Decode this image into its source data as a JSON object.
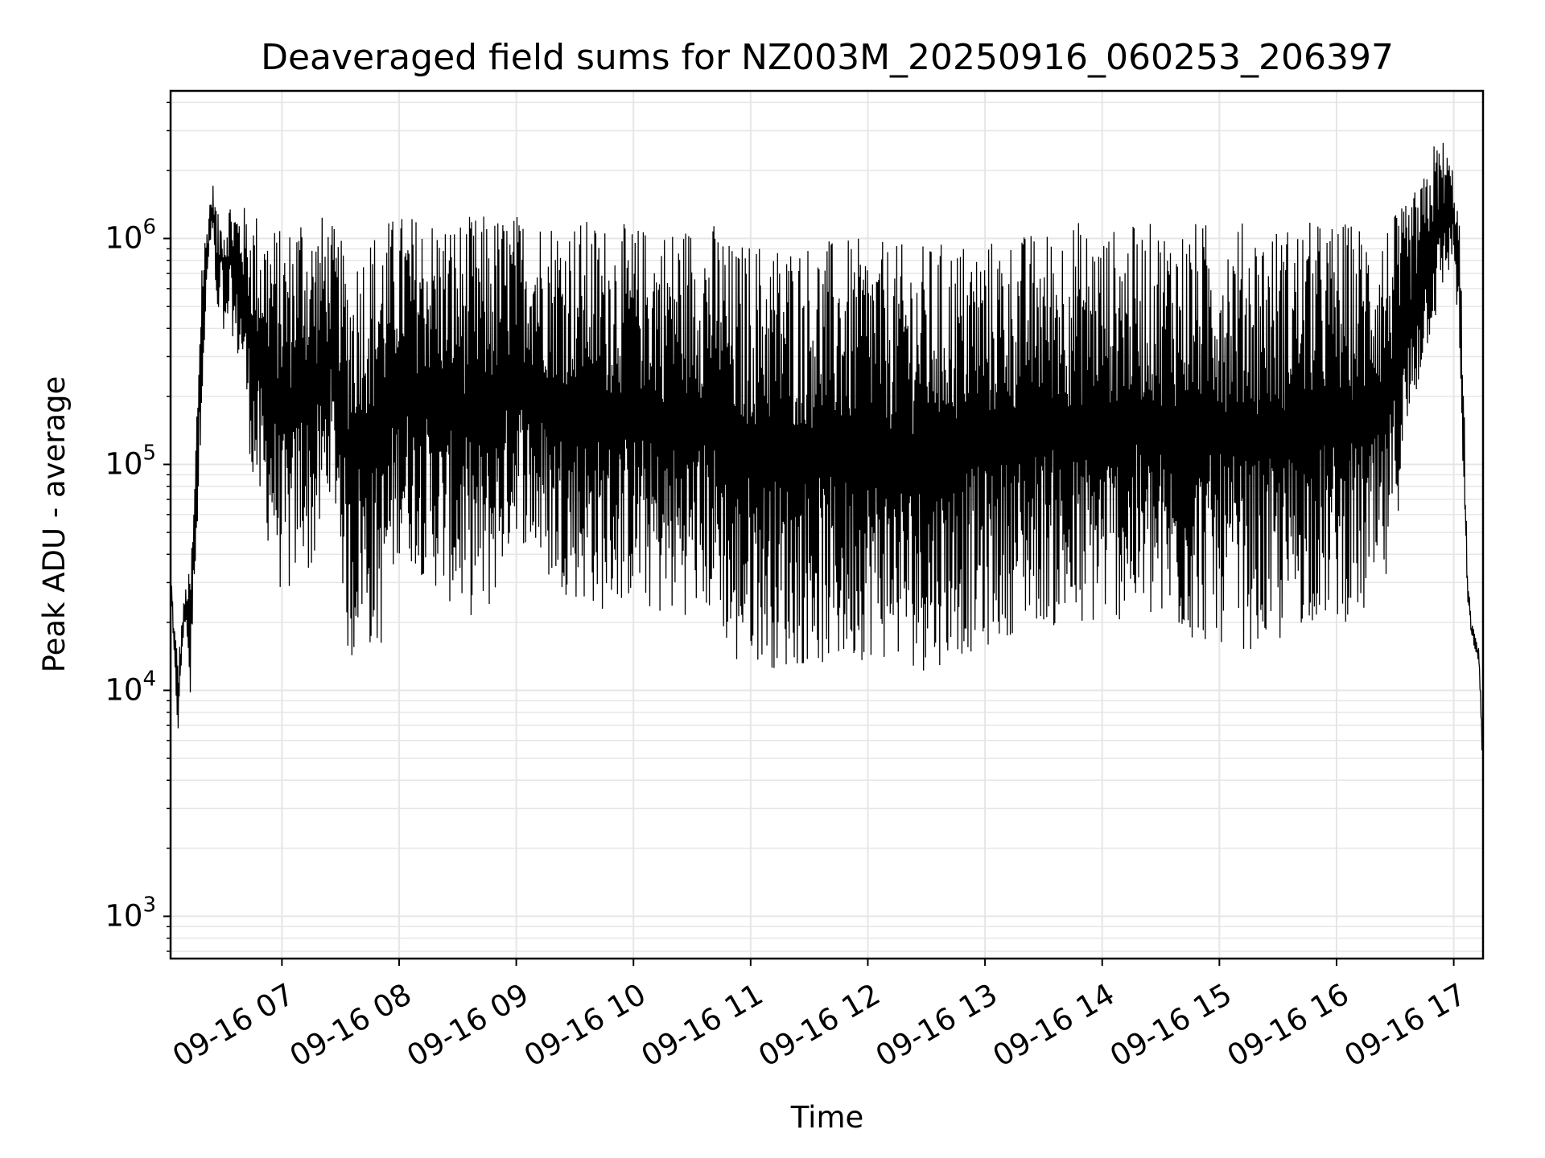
{
  "chart_data": {
    "type": "line",
    "title": "Deaveraged field sums for NZ003M_20250916_060253_206397",
    "xlabel": "Time",
    "ylabel": "Peak ADU - average",
    "x_range": [
      "2025-09-16T06:03",
      "2025-09-16T17:15"
    ],
    "y_scale": "log",
    "ylim": [
      650,
      4500000
    ],
    "grid": true,
    "line_color": "#000000",
    "grid_color": "#e6e6e6",
    "x_ticks": [
      {
        "value": "2025-09-16T07:00",
        "label": "09-16 07"
      },
      {
        "value": "2025-09-16T08:00",
        "label": "09-16 08"
      },
      {
        "value": "2025-09-16T09:00",
        "label": "09-16 09"
      },
      {
        "value": "2025-09-16T10:00",
        "label": "09-16 10"
      },
      {
        "value": "2025-09-16T11:00",
        "label": "09-16 11"
      },
      {
        "value": "2025-09-16T12:00",
        "label": "09-16 12"
      },
      {
        "value": "2025-09-16T13:00",
        "label": "09-16 13"
      },
      {
        "value": "2025-09-16T14:00",
        "label": "09-16 14"
      },
      {
        "value": "2025-09-16T15:00",
        "label": "09-16 15"
      },
      {
        "value": "2025-09-16T16:00",
        "label": "09-16 16"
      },
      {
        "value": "2025-09-16T17:00",
        "label": "09-16 17"
      }
    ],
    "y_ticks": [
      {
        "value": 1000,
        "base": "10",
        "exp": "3"
      },
      {
        "value": 10000,
        "base": "10",
        "exp": "4"
      },
      {
        "value": 100000,
        "base": "10",
        "exp": "5"
      },
      {
        "value": 1000000,
        "base": "10",
        "exp": "6"
      }
    ],
    "series": [
      {
        "x": [
          "2025-09-16T06:03",
          "2025-09-16T06:05",
          "2025-09-16T06:07",
          "2025-09-16T06:09",
          "2025-09-16T06:11",
          "2025-09-16T06:13",
          "2025-09-16T06:15",
          "2025-09-16T06:17",
          "2025-09-16T06:19",
          "2025-09-16T06:21",
          "2025-09-16T06:23",
          "2025-09-16T06:25",
          "2025-09-16T06:27",
          "2025-09-16T06:29",
          "2025-09-16T06:31",
          "2025-09-16T06:33",
          "2025-09-16T06:36",
          "2025-09-16T06:40",
          "2025-09-16T06:45",
          "2025-09-16T06:50",
          "2025-09-16T06:55",
          "2025-09-16T07:00",
          "2025-09-16T07:05",
          "2025-09-16T07:10",
          "2025-09-16T07:15",
          "2025-09-16T07:20",
          "2025-09-16T07:25",
          "2025-09-16T07:30",
          "2025-09-16T07:33",
          "2025-09-16T07:36",
          "2025-09-16T07:40",
          "2025-09-16T07:45",
          "2025-09-16T07:50",
          "2025-09-16T08:00",
          "2025-09-16T08:15",
          "2025-09-16T08:30",
          "2025-09-16T08:45",
          "2025-09-16T09:00",
          "2025-09-16T09:15",
          "2025-09-16T09:30",
          "2025-09-16T09:45",
          "2025-09-16T10:00",
          "2025-09-16T10:15",
          "2025-09-16T10:30",
          "2025-09-16T10:45",
          "2025-09-16T10:50",
          "2025-09-16T11:00",
          "2025-09-16T11:15",
          "2025-09-16T11:30",
          "2025-09-16T11:45",
          "2025-09-16T12:00",
          "2025-09-16T12:15",
          "2025-09-16T12:30",
          "2025-09-16T12:45",
          "2025-09-16T13:00",
          "2025-09-16T13:15",
          "2025-09-16T13:30",
          "2025-09-16T13:45",
          "2025-09-16T14:00",
          "2025-09-16T14:15",
          "2025-09-16T14:30",
          "2025-09-16T14:45",
          "2025-09-16T15:00",
          "2025-09-16T15:15",
          "2025-09-16T15:30",
          "2025-09-16T15:45",
          "2025-09-16T16:00",
          "2025-09-16T16:15",
          "2025-09-16T16:25",
          "2025-09-16T16:35",
          "2025-09-16T16:45",
          "2025-09-16T16:50",
          "2025-09-16T16:55",
          "2025-09-16T17:00",
          "2025-09-16T17:03",
          "2025-09-16T17:05",
          "2025-09-16T17:07",
          "2025-09-16T17:09",
          "2025-09-16T17:11",
          "2025-09-16T17:13",
          "2025-09-16T17:15"
        ],
        "low": [
          30000,
          11000,
          6000,
          15000,
          20000,
          8000,
          30000,
          50000,
          200000,
          400000,
          900000,
          1000000,
          300000,
          700000,
          200000,
          500000,
          300000,
          250000,
          80000,
          50000,
          40000,
          25000,
          25000,
          40000,
          30000,
          45000,
          80000,
          40000,
          15000,
          12000,
          20000,
          15000,
          14000,
          40000,
          30000,
          22000,
          20000,
          50000,
          30000,
          25000,
          22000,
          25000,
          20000,
          22000,
          20000,
          11000,
          14000,
          12000,
          13000,
          12000,
          14000,
          13000,
          12000,
          14000,
          15000,
          18000,
          20000,
          16000,
          20000,
          20000,
          18000,
          16000,
          16000,
          15000,
          15000,
          20000,
          20000,
          20000,
          25000,
          100000,
          300000,
          400000,
          600000,
          800000,
          300000,
          60000,
          25000,
          17000,
          15000,
          12000,
          4000
        ],
        "high": [
          35000,
          20000,
          14000,
          22000,
          30000,
          35000,
          70000,
          300000,
          900000,
          1100000,
          1500000,
          1800000,
          1300000,
          1200000,
          1600000,
          1500000,
          1500000,
          1400000,
          1400000,
          1300000,
          1200000,
          1100000,
          1200000,
          1500000,
          1200000,
          1300000,
          1200000,
          1000000,
          900000,
          850000,
          1000000,
          1100000,
          1200000,
          1300000,
          1300000,
          1250000,
          1300000,
          1300000,
          1300000,
          1250000,
          1200000,
          1150000,
          1150000,
          1200000,
          1200000,
          950000,
          1000000,
          1000000,
          1000000,
          1000000,
          1000000,
          950000,
          950000,
          1000000,
          1000000,
          1050000,
          1100000,
          1250000,
          1100000,
          1150000,
          1200000,
          1200000,
          1200000,
          1200000,
          1150000,
          1200000,
          1200000,
          1200000,
          1200000,
          1400000,
          1900000,
          2700000,
          2800000,
          2000000,
          1200000,
          250000,
          35000,
          20000,
          18000,
          15000,
          6000
        ]
      }
    ]
  }
}
